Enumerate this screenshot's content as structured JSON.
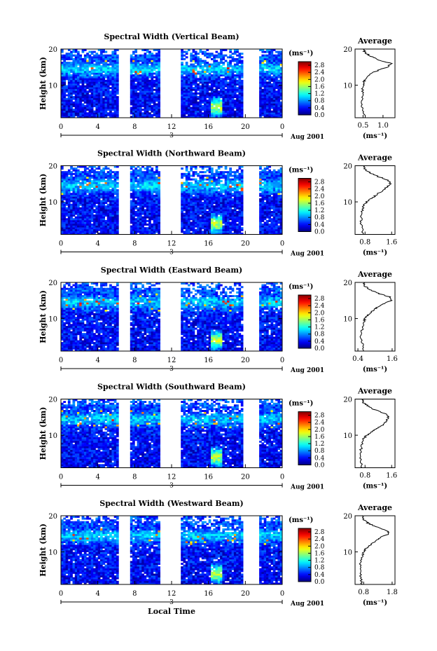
{
  "chart_data": [
    {
      "type": "heatmap",
      "title": "Spectral Width (Vertical Beam)",
      "xlabel": "",
      "ylabel": "Height (km)",
      "xlim": [
        0,
        24
      ],
      "ylim": [
        1,
        20
      ],
      "x_ticks": [
        "0",
        "4",
        "8",
        "12",
        "16",
        "20",
        "0"
      ],
      "y_ticks": [
        "10",
        "20"
      ],
      "date_label": "Aug 2001",
      "day_marker": "3",
      "colorbar": {
        "unit": "(ms⁻¹)",
        "ticks": [
          "0.0",
          "0.4",
          "0.8",
          "1.2",
          "1.6",
          "2.0",
          "2.4",
          "2.8"
        ],
        "range": [
          0,
          3.0
        ]
      },
      "data_gaps": [
        [
          6.2,
          7.4
        ],
        [
          10.8,
          13.1
        ],
        [
          19.8,
          21.6
        ]
      ],
      "avg_profile": {
        "title": "Average",
        "xlabel": "(ms⁻¹)",
        "x_ticks": [
          "0.5",
          "1.0"
        ],
        "xlim": [
          0.3,
          1.3
        ],
        "y_ticks": [
          "10",
          "20"
        ],
        "height_km": [
          1,
          3,
          5,
          7,
          9,
          10,
          11,
          12,
          13,
          14,
          15,
          16,
          17,
          18,
          19,
          20
        ],
        "width_ms": [
          0.55,
          0.5,
          0.45,
          0.5,
          0.48,
          0.5,
          0.52,
          0.6,
          0.65,
          0.85,
          1.1,
          1.2,
          0.9,
          0.7,
          0.55,
          0.5
        ]
      }
    },
    {
      "type": "heatmap",
      "title": "Spectral Width (Northward Beam)",
      "xlabel": "",
      "ylabel": "Height (km)",
      "xlim": [
        0,
        24
      ],
      "ylim": [
        1,
        20
      ],
      "x_ticks": [
        "0",
        "4",
        "8",
        "12",
        "16",
        "20",
        "0"
      ],
      "y_ticks": [
        "10",
        "20"
      ],
      "date_label": "Aug 2001",
      "day_marker": "3",
      "colorbar": {
        "unit": "(ms⁻¹)",
        "ticks": [
          "0.0",
          "0.4",
          "0.8",
          "1.2",
          "1.6",
          "2.0",
          "2.4",
          "2.8"
        ],
        "range": [
          0,
          3.0
        ]
      },
      "data_gaps": [
        [
          6.2,
          7.4
        ],
        [
          10.8,
          13.1
        ],
        [
          19.8,
          21.6
        ]
      ],
      "avg_profile": {
        "title": "Average",
        "xlabel": "(ms⁻¹)",
        "x_ticks": [
          "0.8",
          "1.6"
        ],
        "xlim": [
          0.5,
          1.7
        ],
        "y_ticks": [
          "10",
          "20"
        ],
        "height_km": [
          1,
          3,
          5,
          7,
          9,
          10,
          11,
          12,
          13,
          14,
          15,
          16,
          17,
          18,
          19,
          20
        ],
        "width_ms": [
          0.75,
          0.7,
          0.68,
          0.7,
          0.75,
          0.85,
          1.0,
          1.15,
          1.3,
          1.45,
          1.55,
          1.5,
          1.2,
          0.95,
          0.8,
          0.75
        ]
      }
    },
    {
      "type": "heatmap",
      "title": "Spectral Width (Eastward Beam)",
      "xlabel": "",
      "ylabel": "Height (km)",
      "xlim": [
        0,
        24
      ],
      "ylim": [
        1,
        20
      ],
      "x_ticks": [
        "0",
        "4",
        "8",
        "12",
        "16",
        "20",
        "0"
      ],
      "y_ticks": [
        "10",
        "20"
      ],
      "date_label": "Aug 2001",
      "day_marker": "3",
      "colorbar": {
        "unit": "(ms⁻¹)",
        "ticks": [
          "0.0",
          "0.4",
          "0.8",
          "1.2",
          "1.6",
          "2.0",
          "2.4",
          "2.8"
        ],
        "range": [
          0,
          3.0
        ]
      },
      "data_gaps": [
        [
          6.2,
          7.4
        ],
        [
          10.8,
          13.1
        ],
        [
          19.8,
          21.6
        ]
      ],
      "avg_profile": {
        "title": "Average",
        "xlabel": "(ms⁻¹)",
        "x_ticks": [
          "0.4",
          "1.6"
        ],
        "xlim": [
          0.3,
          1.7
        ],
        "y_ticks": [
          "10",
          "20"
        ],
        "height_km": [
          1,
          3,
          5,
          7,
          9,
          10,
          11,
          12,
          13,
          14,
          15,
          16,
          17,
          18,
          19,
          20
        ],
        "width_ms": [
          0.6,
          0.55,
          0.5,
          0.55,
          0.6,
          0.65,
          0.75,
          0.9,
          1.05,
          1.3,
          1.55,
          1.5,
          1.1,
          0.8,
          0.65,
          0.6
        ]
      }
    },
    {
      "type": "heatmap",
      "title": "Spectral Width (Southward Beam)",
      "xlabel": "",
      "ylabel": "Height (km)",
      "xlim": [
        0,
        24
      ],
      "ylim": [
        1,
        20
      ],
      "x_ticks": [
        "0",
        "4",
        "8",
        "12",
        "16",
        "20",
        "0"
      ],
      "y_ticks": [
        "10",
        "20"
      ],
      "date_label": "Aug 2001",
      "day_marker": "3",
      "colorbar": {
        "unit": "(ms⁻¹)",
        "ticks": [
          "0.0",
          "0.4",
          "0.8",
          "1.2",
          "1.6",
          "2.0",
          "2.4",
          "2.8"
        ],
        "range": [
          0,
          3.0
        ]
      },
      "data_gaps": [
        [
          6.2,
          7.4
        ],
        [
          10.8,
          13.1
        ],
        [
          19.8,
          21.6
        ]
      ],
      "avg_profile": {
        "title": "Average",
        "xlabel": "(ms⁻¹)",
        "x_ticks": [
          "0.8",
          "1.6"
        ],
        "xlim": [
          0.5,
          1.7
        ],
        "y_ticks": [
          "10",
          "20"
        ],
        "height_km": [
          1,
          3,
          5,
          7,
          9,
          10,
          11,
          12,
          13,
          14,
          15,
          16,
          17,
          18,
          19,
          20
        ],
        "width_ms": [
          0.7,
          0.68,
          0.65,
          0.7,
          0.75,
          0.85,
          1.0,
          1.2,
          1.35,
          1.45,
          1.5,
          1.4,
          1.1,
          0.9,
          0.75,
          0.7
        ]
      }
    },
    {
      "type": "heatmap",
      "title": "Spectral Width (Westward Beam)",
      "xlabel": "Local Time",
      "ylabel": "Height (km)",
      "xlim": [
        0,
        24
      ],
      "ylim": [
        1,
        20
      ],
      "x_ticks": [
        "0",
        "4",
        "8",
        "12",
        "16",
        "20",
        "0"
      ],
      "y_ticks": [
        "10",
        "20"
      ],
      "date_label": "Aug 2001",
      "day_marker": "3",
      "colorbar": {
        "unit": "(ms⁻¹)",
        "ticks": [
          "0.0",
          "0.4",
          "0.8",
          "1.2",
          "1.6",
          "2.0",
          "2.4",
          "2.8"
        ],
        "range": [
          0,
          3.0
        ]
      },
      "data_gaps": [
        [
          6.2,
          7.4
        ],
        [
          10.8,
          13.1
        ],
        [
          19.8,
          21.6
        ]
      ],
      "avg_profile": {
        "title": "Average",
        "xlabel": "(ms⁻¹)",
        "x_ticks": [
          "0.8",
          "1.8"
        ],
        "xlim": [
          0.5,
          1.9
        ],
        "y_ticks": [
          "10",
          "20"
        ],
        "height_km": [
          1,
          3,
          5,
          7,
          9,
          10,
          11,
          12,
          13,
          14,
          15,
          16,
          17,
          18,
          19,
          20
        ],
        "width_ms": [
          0.75,
          0.7,
          0.68,
          0.7,
          0.75,
          0.8,
          0.9,
          1.05,
          1.2,
          1.4,
          1.7,
          1.6,
          1.2,
          0.95,
          0.8,
          0.75
        ]
      }
    }
  ]
}
